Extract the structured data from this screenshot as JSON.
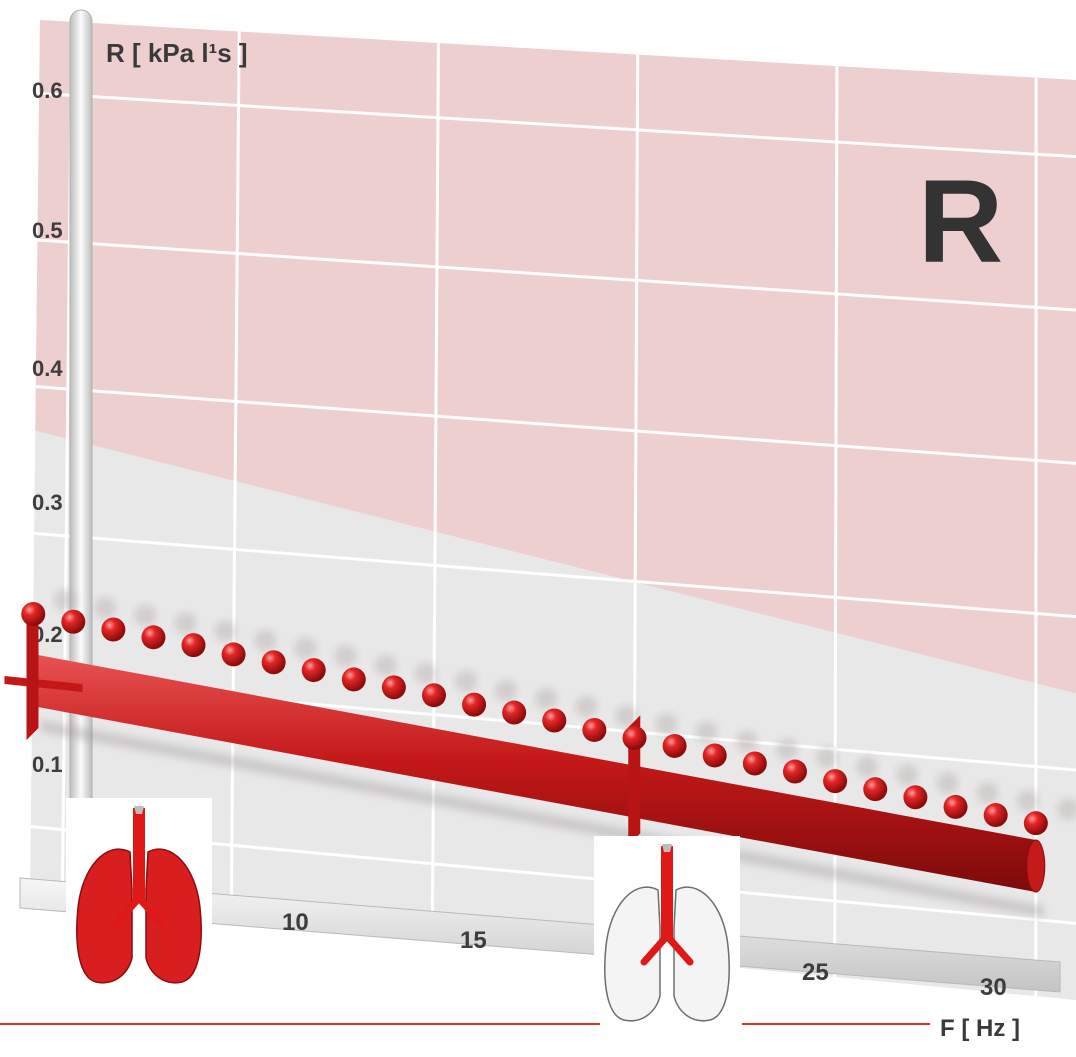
{
  "chart_data": {
    "type": "scatter",
    "title": "",
    "badge": "R",
    "ylabel": "R  [ kPa l¹s ]",
    "xlabel": "F  [ Hz ]",
    "ylim": [
      0.05,
      0.65
    ],
    "xlim": [
      5,
      31
    ],
    "y_ticks": [
      "0.6",
      "0.5",
      "0.4",
      "0.3",
      "0.2",
      "0.1"
    ],
    "x_ticks": [
      "10",
      "15",
      "25",
      "30"
    ],
    "grid": true,
    "normal_zone_boundary": {
      "x": [
        5,
        31
      ],
      "y": [
        0.37,
        0.25
      ]
    },
    "series": [
      {
        "kind": "points",
        "x": [
          5,
          6,
          7,
          8,
          9,
          10,
          11,
          12,
          13,
          14,
          15,
          16,
          17,
          18,
          19,
          20,
          21,
          22,
          23,
          24,
          25,
          26,
          27,
          28,
          29,
          30
        ],
        "y": [
          0.245,
          0.242,
          0.239,
          0.236,
          0.233,
          0.229,
          0.226,
          0.223,
          0.219,
          0.216,
          0.213,
          0.209,
          0.206,
          0.203,
          0.199,
          0.196,
          0.193,
          0.189,
          0.186,
          0.183,
          0.179,
          0.176,
          0.173,
          0.169,
          0.166,
          0.163
        ]
      },
      {
        "kind": "bar",
        "x": [
          5,
          30
        ],
        "y": [
          0.2,
          0.135
        ]
      }
    ],
    "colors": {
      "band": "#edcfd0",
      "plot_bg": "#e8e8e8",
      "grid": "#ffffff",
      "marker": "#d81818",
      "bar": "#c51a1a",
      "accent_line": "#e03030",
      "badge": "#333333"
    },
    "icons": [
      "lungs-full-icon",
      "lungs-central-icon"
    ]
  }
}
